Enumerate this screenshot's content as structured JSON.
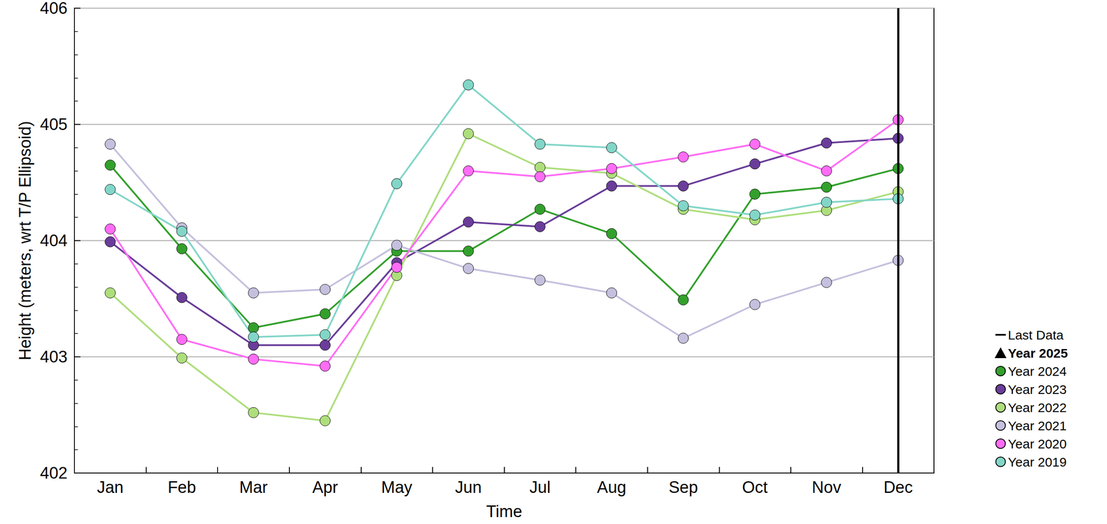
{
  "chart_data": {
    "type": "line",
    "x_label": "Time",
    "y_label": "Height (meters, wrt T/P Ellipsoid)",
    "categories": [
      "Jan",
      "Feb",
      "Mar",
      "Apr",
      "May",
      "Jun",
      "Jul",
      "Aug",
      "Sep",
      "Oct",
      "Nov",
      "Dec"
    ],
    "ylim": [
      402,
      406
    ],
    "yticks": [
      402,
      403,
      404,
      405,
      406
    ],
    "grid": true,
    "legend": "right",
    "series": [
      {
        "name": "Last Data",
        "type": "vline",
        "color": "#000000",
        "x": "Dec"
      },
      {
        "name": "Year 2025",
        "color": "#000000",
        "marker": "triangle",
        "values": [
          null,
          null,
          null,
          null,
          null,
          null,
          null,
          null,
          null,
          null,
          null,
          null
        ]
      },
      {
        "name": "Year 2024",
        "color": "#33a02c",
        "marker": "circle",
        "values": [
          404.65,
          403.93,
          403.25,
          403.37,
          403.91,
          403.91,
          404.27,
          404.06,
          403.49,
          404.4,
          404.46,
          404.62
        ]
      },
      {
        "name": "Year 2023",
        "color": "#6a3d9a",
        "marker": "circle",
        "values": [
          403.99,
          403.51,
          403.1,
          403.1,
          403.81,
          404.16,
          404.12,
          404.47,
          404.47,
          404.66,
          404.84,
          404.88
        ]
      },
      {
        "name": "Year 2022",
        "color": "#aede7c",
        "marker": "circle",
        "values": [
          403.55,
          402.99,
          402.52,
          402.45,
          403.7,
          404.92,
          404.63,
          404.58,
          404.27,
          404.18,
          404.26,
          404.42
        ]
      },
      {
        "name": "Year 2021",
        "color": "#c4c0de",
        "marker": "circle",
        "values": [
          404.83,
          404.11,
          403.55,
          403.58,
          403.96,
          403.76,
          403.66,
          403.55,
          403.16,
          403.45,
          403.64,
          403.83
        ]
      },
      {
        "name": "Year 2020",
        "color": "#ff6cf5",
        "marker": "circle",
        "values": [
          404.1,
          403.15,
          402.98,
          402.92,
          403.77,
          404.6,
          404.55,
          404.62,
          404.72,
          404.83,
          404.6,
          405.04
        ]
      },
      {
        "name": "Year 2019",
        "color": "#82d6c8",
        "marker": "circle",
        "values": [
          404.44,
          404.08,
          403.17,
          403.19,
          404.49,
          405.34,
          404.83,
          404.8,
          404.3,
          404.22,
          404.33,
          404.36
        ]
      }
    ]
  }
}
